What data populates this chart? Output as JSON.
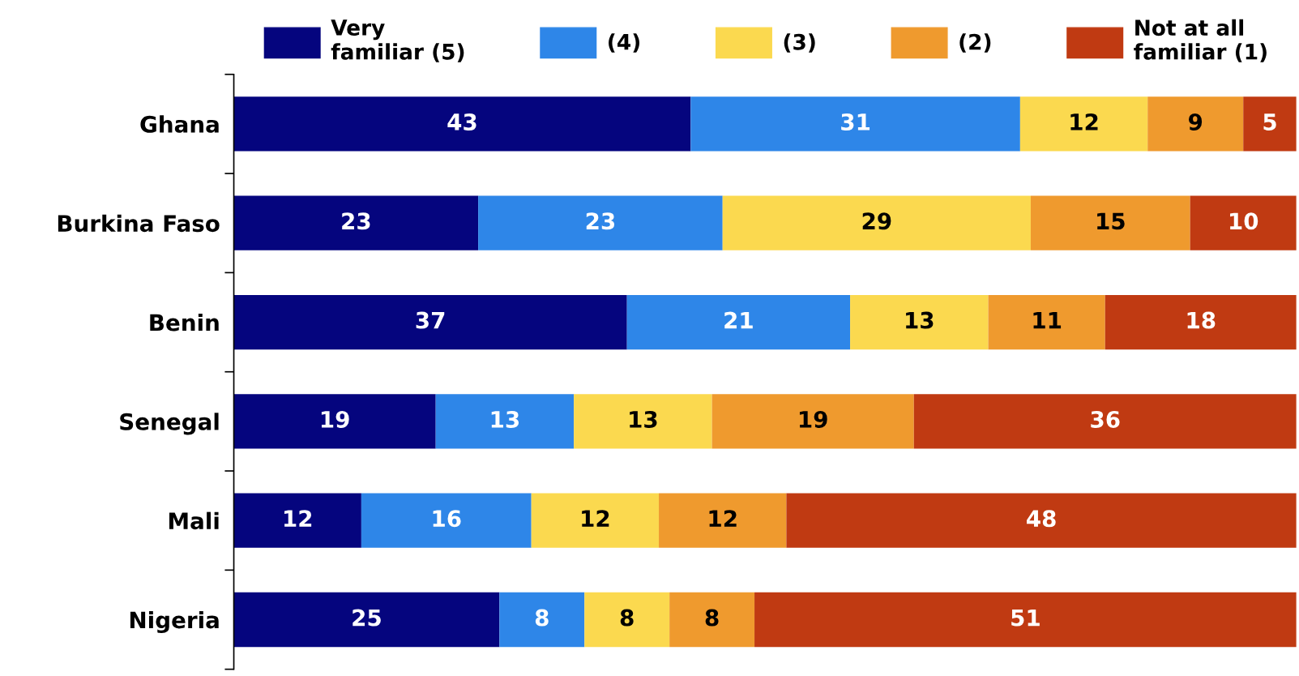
{
  "chart_data": {
    "type": "bar",
    "orientation": "horizontal",
    "stacked": true,
    "data_labels": true,
    "legend": "top",
    "tick_labels": "y",
    "grid": false,
    "categories": [
      "Ghana",
      "Burkina Faso",
      "Benin",
      "Senegal",
      "Mali",
      "Nigeria"
    ],
    "xlim": [
      0,
      100
    ],
    "series": [
      {
        "name": "Very\nfamiliar (5)",
        "color": "#05057e",
        "values": [
          43,
          23,
          37,
          19,
          12,
          25
        ]
      },
      {
        "name": "(4)",
        "color": "#2e86e8",
        "values": [
          31,
          23,
          21,
          13,
          16,
          8
        ]
      },
      {
        "name": "(3)",
        "color": "#fbd94f",
        "values": [
          12,
          29,
          13,
          13,
          12,
          8
        ]
      },
      {
        "name": "(2)",
        "color": "#ef9a2e",
        "values": [
          9,
          15,
          11,
          19,
          12,
          8
        ]
      },
      {
        "name": "Not at all\nfamiliar (1)",
        "color": "#c03a12",
        "values": [
          5,
          10,
          18,
          36,
          48,
          51
        ]
      }
    ]
  }
}
